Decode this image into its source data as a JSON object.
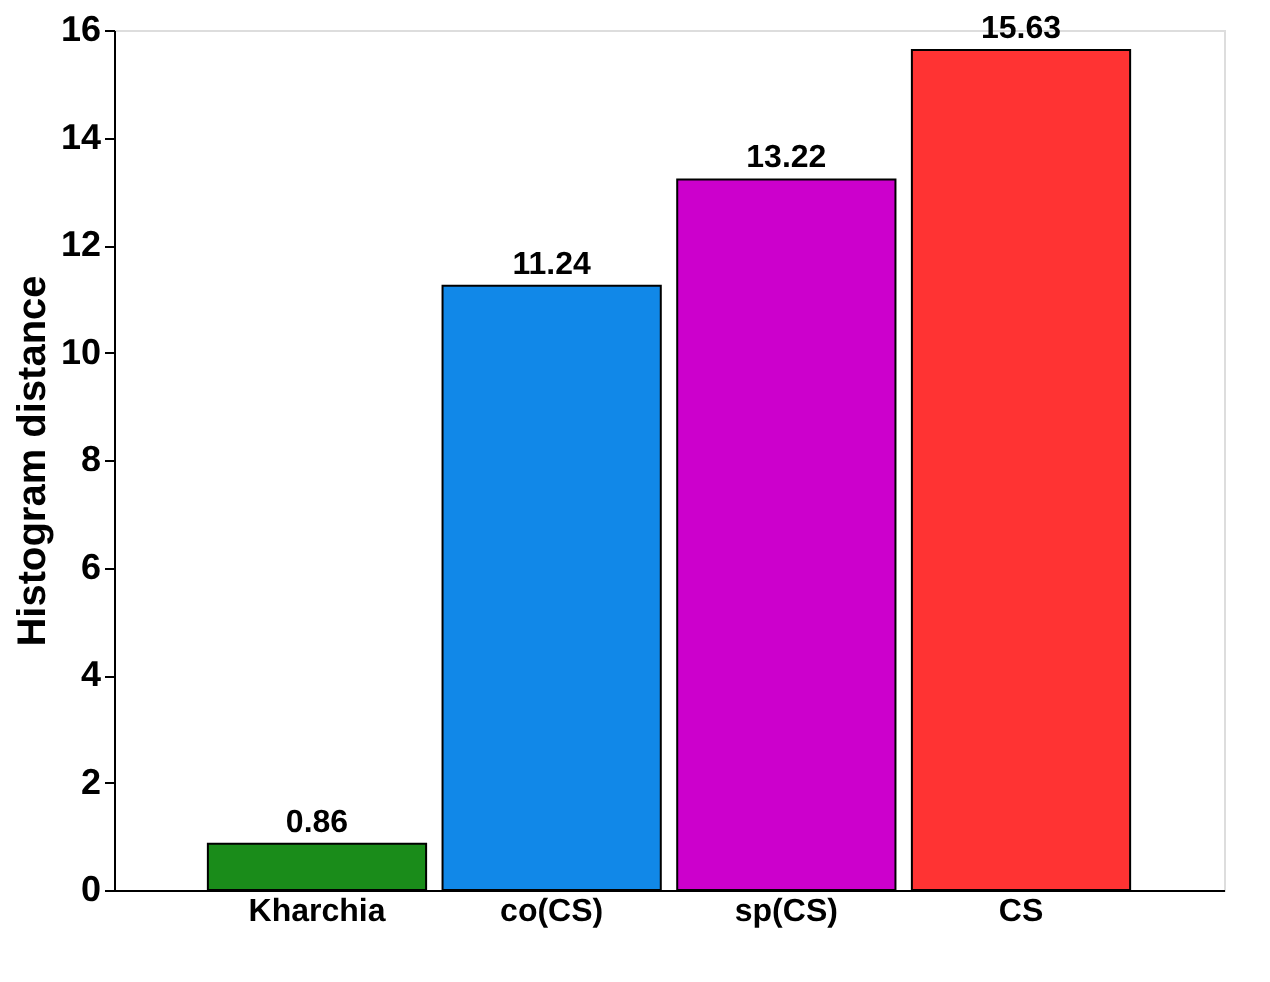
{
  "chart_data": {
    "type": "bar",
    "ylabel": "Histogram distance",
    "categories": [
      "Kharchia",
      "co(CS)",
      "sp(CS)",
      "CS"
    ],
    "values": [
      0.86,
      11.24,
      13.22,
      15.63
    ],
    "colors": [
      "#1a8c1a",
      "#1188e8",
      "#cc00cc",
      "#ff3333"
    ],
    "ylim": [
      0,
      16
    ],
    "yticks": [
      0,
      2,
      4,
      6,
      8,
      10,
      12,
      14,
      16
    ],
    "data_labels": true,
    "grid": false
  }
}
